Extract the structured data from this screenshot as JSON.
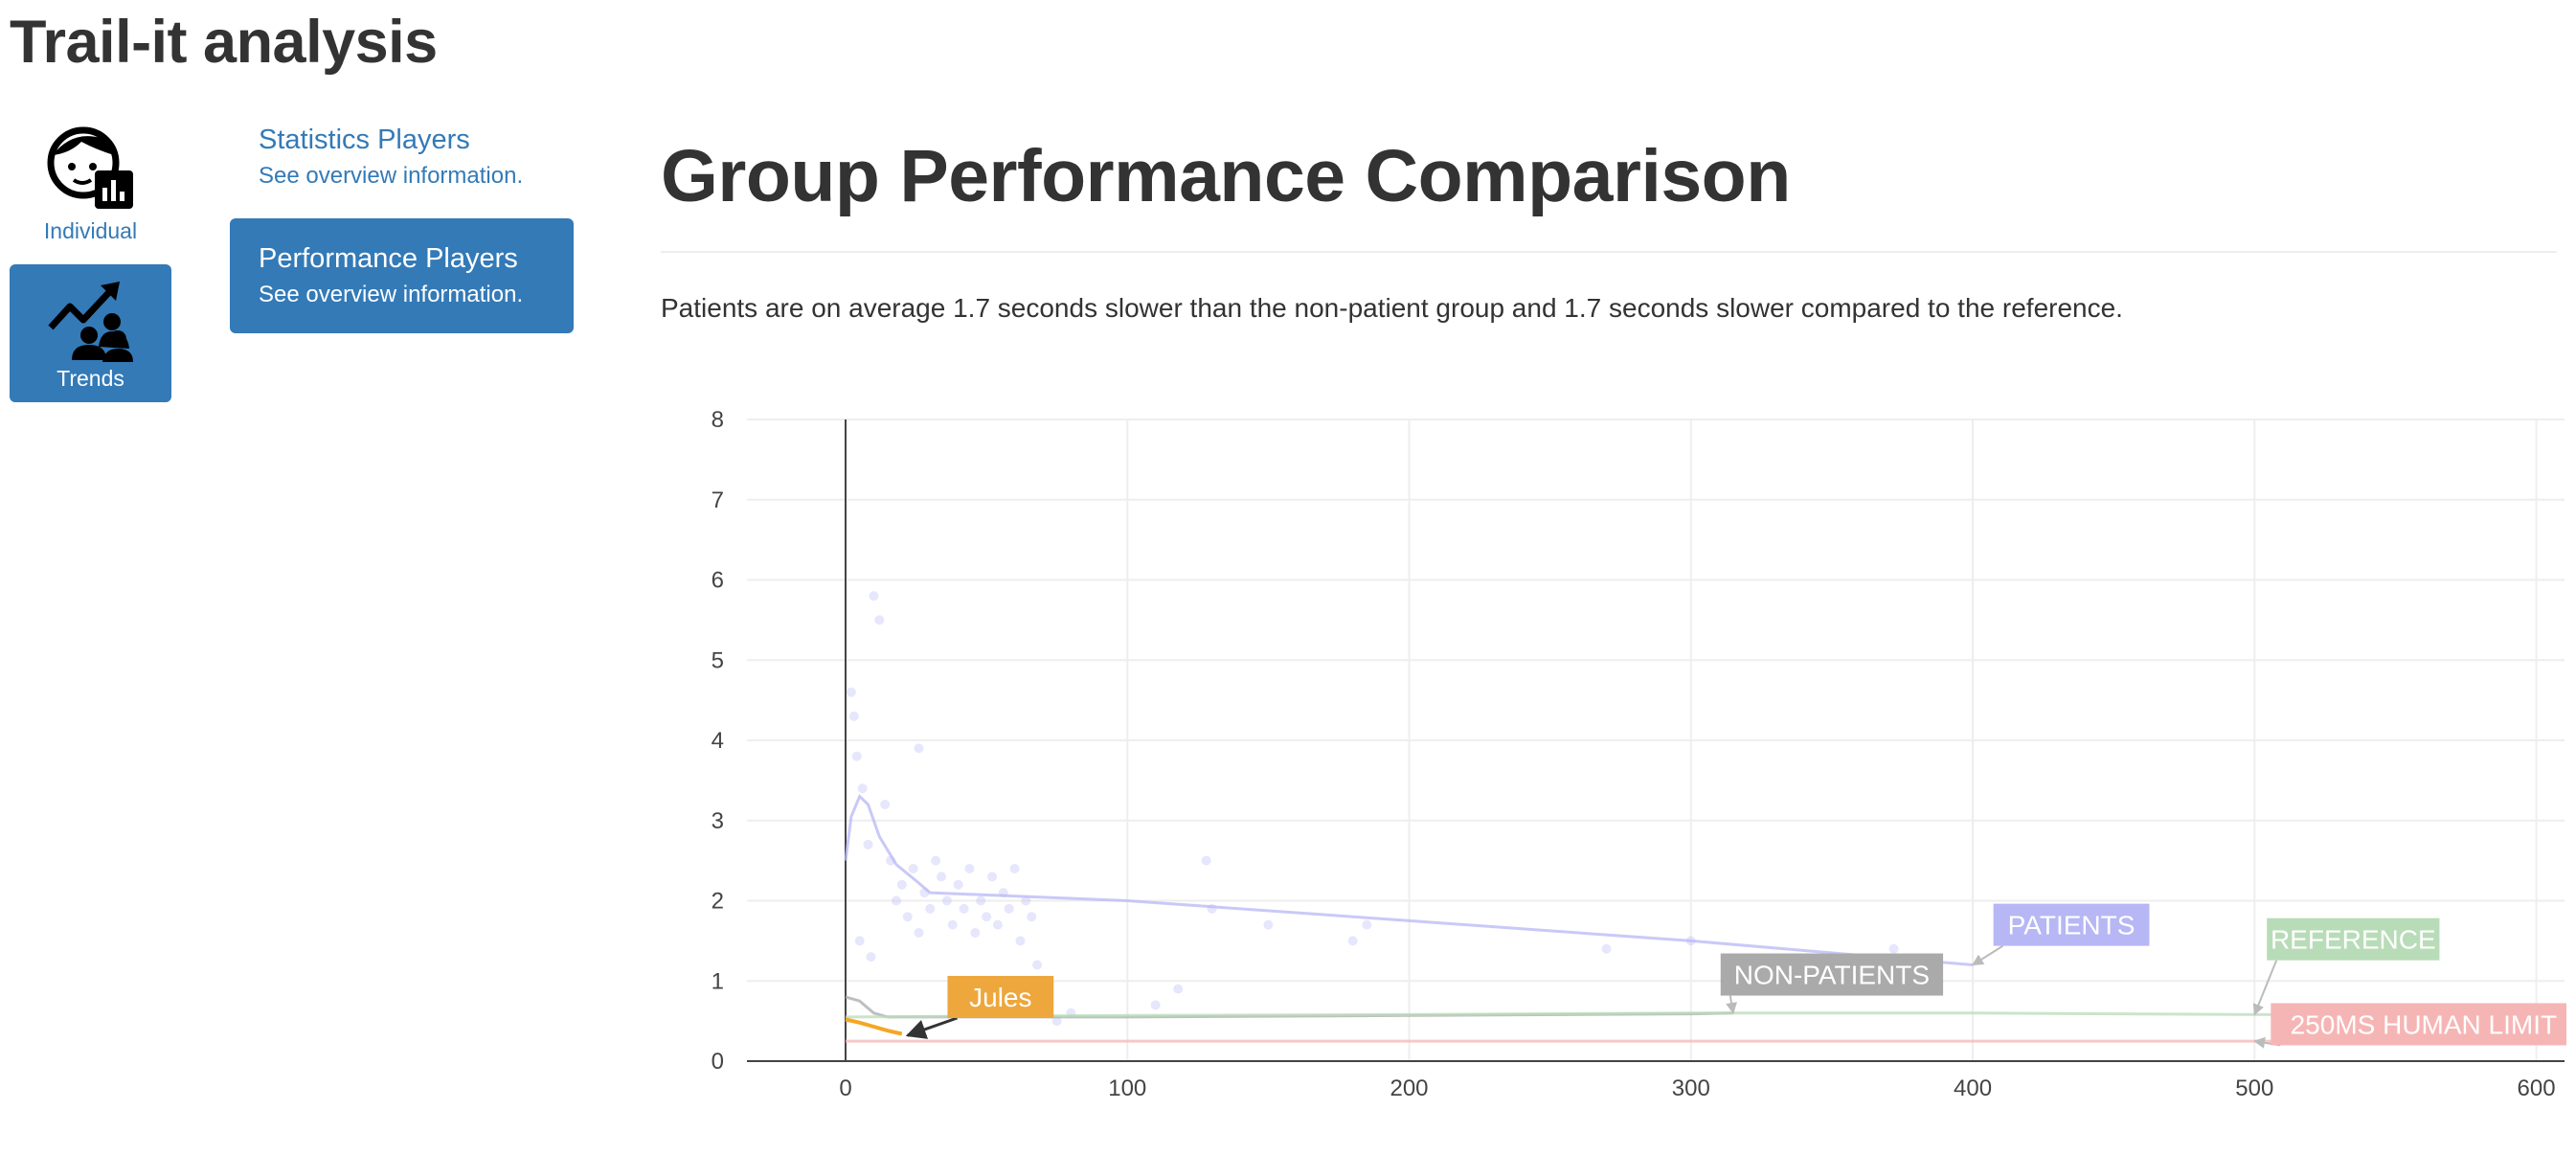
{
  "app": {
    "title": "Trail-it analysis"
  },
  "nav": {
    "tiles": [
      {
        "label": "Individual",
        "icon": "face-chart-icon",
        "active": false
      },
      {
        "label": "Trends",
        "icon": "trend-users-icon",
        "active": true
      }
    ],
    "accent_color": "#337ab7"
  },
  "submenu": {
    "items": [
      {
        "title": "Statistics Players",
        "description": "See overview information.",
        "active": false
      },
      {
        "title": "Performance Players",
        "description": "See overview information.",
        "active": true
      }
    ]
  },
  "main": {
    "heading": "Group Performance Comparison",
    "summary": "Patients are on average 1.7 seconds slower than the non-patient group and 1.7 seconds slower compared to the reference."
  },
  "chart_data": {
    "type": "scatter",
    "title": "",
    "xlabel": "",
    "ylabel": "",
    "xlim": [
      -35,
      610
    ],
    "ylim": [
      0,
      8
    ],
    "xticks": [
      0,
      100,
      200,
      300,
      400,
      500,
      600
    ],
    "yticks": [
      0,
      1,
      2,
      3,
      4,
      5,
      6,
      7,
      8
    ],
    "grid": true,
    "series": [
      {
        "name": "PATIENTS",
        "color": "#b7b7f5",
        "line": [
          [
            0,
            2.5
          ],
          [
            2,
            3.05
          ],
          [
            5,
            3.3
          ],
          [
            8,
            3.2
          ],
          [
            12,
            2.8
          ],
          [
            18,
            2.45
          ],
          [
            25,
            2.25
          ],
          [
            30,
            2.1
          ],
          [
            100,
            2.0
          ],
          [
            200,
            1.75
          ],
          [
            300,
            1.5
          ],
          [
            400,
            1.2
          ]
        ],
        "points": [
          [
            2,
            4.6
          ],
          [
            3,
            4.3
          ],
          [
            4,
            3.8
          ],
          [
            6,
            3.4
          ],
          [
            8,
            2.7
          ],
          [
            10,
            5.8
          ],
          [
            12,
            5.5
          ],
          [
            14,
            3.2
          ],
          [
            16,
            2.5
          ],
          [
            18,
            2.0
          ],
          [
            20,
            2.2
          ],
          [
            22,
            1.8
          ],
          [
            24,
            2.4
          ],
          [
            26,
            1.6
          ],
          [
            28,
            2.1
          ],
          [
            30,
            1.9
          ],
          [
            32,
            2.5
          ],
          [
            34,
            2.3
          ],
          [
            36,
            2.0
          ],
          [
            38,
            1.7
          ],
          [
            40,
            2.2
          ],
          [
            42,
            1.9
          ],
          [
            44,
            2.4
          ],
          [
            46,
            1.6
          ],
          [
            48,
            2.0
          ],
          [
            50,
            1.8
          ],
          [
            52,
            2.3
          ],
          [
            54,
            1.7
          ],
          [
            56,
            2.1
          ],
          [
            58,
            1.9
          ],
          [
            60,
            2.4
          ],
          [
            62,
            1.5
          ],
          [
            64,
            2.0
          ],
          [
            66,
            1.8
          ],
          [
            68,
            1.2
          ],
          [
            70,
            0.9
          ],
          [
            75,
            0.5
          ],
          [
            80,
            0.6
          ],
          [
            110,
            0.7
          ],
          [
            118,
            0.9
          ],
          [
            128,
            2.5
          ],
          [
            130,
            1.9
          ],
          [
            150,
            1.7
          ],
          [
            180,
            1.5
          ],
          [
            185,
            1.7
          ],
          [
            270,
            1.4
          ],
          [
            300,
            1.5
          ],
          [
            350,
            1.3
          ],
          [
            372,
            1.4
          ],
          [
            380,
            1.25
          ],
          [
            26,
            3.9
          ],
          [
            5,
            1.5
          ],
          [
            9,
            1.3
          ]
        ]
      },
      {
        "name": "NON-PATIENTS",
        "color": "#aaaaaa",
        "line": [
          [
            0,
            0.8
          ],
          [
            5,
            0.75
          ],
          [
            10,
            0.6
          ],
          [
            15,
            0.55
          ],
          [
            30,
            0.55
          ],
          [
            100,
            0.55
          ],
          [
            200,
            0.57
          ],
          [
            300,
            0.59
          ],
          [
            315,
            0.6
          ]
        ],
        "points": []
      },
      {
        "name": "REFERENCE",
        "color": "#b8dcb8",
        "line": [
          [
            0,
            0.55
          ],
          [
            100,
            0.57
          ],
          [
            200,
            0.58
          ],
          [
            300,
            0.6
          ],
          [
            400,
            0.6
          ],
          [
            500,
            0.58
          ],
          [
            610,
            0.58
          ]
        ],
        "points": []
      },
      {
        "name": "250MS HUMAN LIMIT",
        "color": "#f6b5b5",
        "line": [
          [
            0,
            0.25
          ],
          [
            610,
            0.25
          ]
        ],
        "points": []
      },
      {
        "name": "Jules",
        "color": "#f5a623",
        "line": [
          [
            0,
            0.52
          ],
          [
            5,
            0.48
          ],
          [
            10,
            0.43
          ],
          [
            15,
            0.38
          ],
          [
            20,
            0.34
          ]
        ],
        "points": []
      }
    ],
    "annotations": [
      {
        "text": "PATIENTS",
        "x": 400,
        "y": 1.2,
        "bg": "#b7b7f5",
        "ax": 435,
        "ay": 1.7
      },
      {
        "text": "NON-PATIENTS",
        "x": 315,
        "y": 0.6,
        "bg": "#aaaaaa",
        "ax": 350,
        "ay": 1.08
      },
      {
        "text": "REFERENCE",
        "x": 500,
        "y": 0.58,
        "bg": "#b8dcb8",
        "ax": 535,
        "ay": 1.52
      },
      {
        "text": "250MS HUMAN LIMIT",
        "x": 500,
        "y": 0.25,
        "bg": "#f6b5b5",
        "ax": 560,
        "ay": 0.46
      },
      {
        "text": "Jules",
        "x": 22,
        "y": 0.32,
        "bg": "#eea73c",
        "ax": 55,
        "ay": 0.8,
        "dark": true
      }
    ]
  }
}
